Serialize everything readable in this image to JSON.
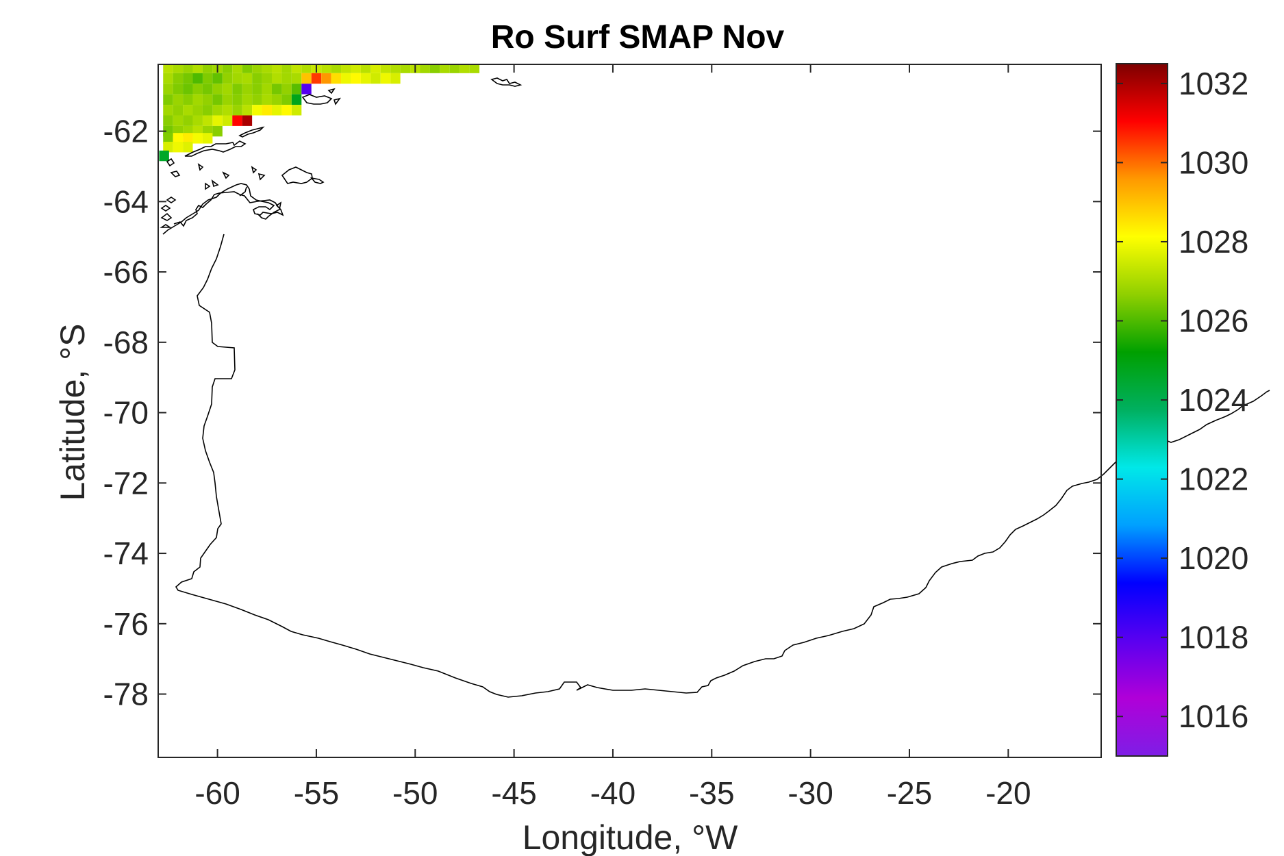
{
  "chart_data": {
    "type": "heatmap",
    "title": "Ro Surf SMAP Nov",
    "xlabel": "Longitude, °W",
    "ylabel": "Latitude, °S",
    "xlim": [
      -63,
      -15.3
    ],
    "ylim": [
      -79.8,
      -60.1
    ],
    "xticks": [
      -60,
      -55,
      -50,
      -45,
      -40,
      -35,
      -30,
      -25,
      -20
    ],
    "xtick_labels": [
      "-60",
      "-55",
      "-50",
      "-45",
      "-40",
      "-35",
      "-30",
      "-25",
      "-20"
    ],
    "yticks": [
      -62,
      -64,
      -66,
      -68,
      -70,
      -72,
      -74,
      -76,
      -78
    ],
    "ytick_labels": [
      "-62",
      "-64",
      "-66",
      "-68",
      "-70",
      "-72",
      "-74",
      "-76",
      "-78"
    ],
    "colorbar": {
      "clim": [
        1015,
        1032.5
      ],
      "ticks": [
        1016,
        1018,
        1020,
        1022,
        1024,
        1026,
        1028,
        1030,
        1032
      ],
      "tick_labels": [
        "1016",
        "1018",
        "1020",
        "1022",
        "1024",
        "1026",
        "1028",
        "1030",
        "1032"
      ],
      "colormap": "jet-like (violet → blue → cyan → green → yellow → red → dark red)"
    },
    "grid": false,
    "cell_size_deg": 0.5,
    "data_region": "Sparse coverage only in the top-left corner (about 62.5–47°W, 60–62.5°S); values mostly 1026–1028, a few near 1024–1025 at the left edge, a 1029–1031 patch near 55.5°W 60.6°S, a 1032 cell near 58.8°W 61.6°S and a 1018 cell near 55.5°W 60.9°S",
    "cells": [
      {
        "lon": -62.5,
        "lat": -60.2,
        "v": 1027.2
      },
      {
        "lon": -62.0,
        "lat": -60.2,
        "v": 1027.0
      },
      {
        "lon": -61.5,
        "lat": -60.2,
        "v": 1026.8
      },
      {
        "lon": -61.0,
        "lat": -60.2,
        "v": 1027.1
      },
      {
        "lon": -60.5,
        "lat": -60.2,
        "v": 1026.7
      },
      {
        "lon": -60.0,
        "lat": -60.2,
        "v": 1026.9
      },
      {
        "lon": -59.5,
        "lat": -60.2,
        "v": 1026.6
      },
      {
        "lon": -59.0,
        "lat": -60.2,
        "v": 1027.0
      },
      {
        "lon": -58.5,
        "lat": -60.2,
        "v": 1026.5
      },
      {
        "lon": -58.0,
        "lat": -60.2,
        "v": 1026.8
      },
      {
        "lon": -57.5,
        "lat": -60.2,
        "v": 1027.0
      },
      {
        "lon": -57.0,
        "lat": -60.2,
        "v": 1027.2
      },
      {
        "lon": -56.5,
        "lat": -60.2,
        "v": 1026.9
      },
      {
        "lon": -56.0,
        "lat": -60.2,
        "v": 1027.3
      },
      {
        "lon": -55.5,
        "lat": -60.2,
        "v": 1027.1
      },
      {
        "lon": -55.0,
        "lat": -60.2,
        "v": 1027.4
      },
      {
        "lon": -54.5,
        "lat": -60.2,
        "v": 1027.2
      },
      {
        "lon": -54.0,
        "lat": -60.2,
        "v": 1027.0
      },
      {
        "lon": -53.5,
        "lat": -60.2,
        "v": 1027.3
      },
      {
        "lon": -53.0,
        "lat": -60.2,
        "v": 1027.5
      },
      {
        "lon": -52.5,
        "lat": -60.2,
        "v": 1027.2
      },
      {
        "lon": -52.0,
        "lat": -60.2,
        "v": 1027.6
      },
      {
        "lon": -51.5,
        "lat": -60.2,
        "v": 1027.3
      },
      {
        "lon": -51.0,
        "lat": -60.2,
        "v": 1027.1
      },
      {
        "lon": -50.5,
        "lat": -60.2,
        "v": 1027.0
      },
      {
        "lon": -50.0,
        "lat": -60.2,
        "v": 1027.2
      },
      {
        "lon": -49.5,
        "lat": -60.2,
        "v": 1026.9
      },
      {
        "lon": -49.0,
        "lat": -60.2,
        "v": 1026.6
      },
      {
        "lon": -48.5,
        "lat": -60.2,
        "v": 1027.0
      },
      {
        "lon": -48.0,
        "lat": -60.2,
        "v": 1026.8
      },
      {
        "lon": -47.5,
        "lat": -60.2,
        "v": 1027.1
      },
      {
        "lon": -47.0,
        "lat": -60.2,
        "v": 1027.0
      },
      {
        "lon": -62.5,
        "lat": -60.5,
        "v": 1027.0
      },
      {
        "lon": -62.0,
        "lat": -60.5,
        "v": 1026.6
      },
      {
        "lon": -61.5,
        "lat": -60.5,
        "v": 1026.4
      },
      {
        "lon": -61.0,
        "lat": -60.5,
        "v": 1026.0
      },
      {
        "lon": -60.5,
        "lat": -60.5,
        "v": 1026.5
      },
      {
        "lon": -60.0,
        "lat": -60.5,
        "v": 1026.2
      },
      {
        "lon": -59.5,
        "lat": -60.5,
        "v": 1026.7
      },
      {
        "lon": -59.0,
        "lat": -60.5,
        "v": 1026.9
      },
      {
        "lon": -58.5,
        "lat": -60.5,
        "v": 1027.0
      },
      {
        "lon": -58.0,
        "lat": -60.5,
        "v": 1026.6
      },
      {
        "lon": -57.5,
        "lat": -60.5,
        "v": 1026.8
      },
      {
        "lon": -57.0,
        "lat": -60.5,
        "v": 1027.1
      },
      {
        "lon": -56.5,
        "lat": -60.5,
        "v": 1026.9
      },
      {
        "lon": -56.0,
        "lat": -60.5,
        "v": 1027.0
      },
      {
        "lon": -55.5,
        "lat": -60.5,
        "v": 1029.0
      },
      {
        "lon": -55.0,
        "lat": -60.5,
        "v": 1030.5
      },
      {
        "lon": -54.5,
        "lat": -60.5,
        "v": 1029.6
      },
      {
        "lon": -54.0,
        "lat": -60.5,
        "v": 1028.6
      },
      {
        "lon": -53.5,
        "lat": -60.5,
        "v": 1027.9
      },
      {
        "lon": -53.0,
        "lat": -60.5,
        "v": 1028.2
      },
      {
        "lon": -52.5,
        "lat": -60.5,
        "v": 1027.8
      },
      {
        "lon": -52.0,
        "lat": -60.5,
        "v": 1027.5
      },
      {
        "lon": -51.5,
        "lat": -60.5,
        "v": 1027.9
      },
      {
        "lon": -51.0,
        "lat": -60.5,
        "v": 1027.6
      },
      {
        "lon": -62.5,
        "lat": -60.8,
        "v": 1026.8
      },
      {
        "lon": -62.0,
        "lat": -60.8,
        "v": 1026.5
      },
      {
        "lon": -61.5,
        "lat": -60.8,
        "v": 1026.3
      },
      {
        "lon": -61.0,
        "lat": -60.8,
        "v": 1026.6
      },
      {
        "lon": -60.5,
        "lat": -60.8,
        "v": 1026.4
      },
      {
        "lon": -60.0,
        "lat": -60.8,
        "v": 1026.7
      },
      {
        "lon": -59.5,
        "lat": -60.8,
        "v": 1026.9
      },
      {
        "lon": -59.0,
        "lat": -60.8,
        "v": 1026.5
      },
      {
        "lon": -58.5,
        "lat": -60.8,
        "v": 1026.8
      },
      {
        "lon": -58.0,
        "lat": -60.8,
        "v": 1026.6
      },
      {
        "lon": -57.5,
        "lat": -60.8,
        "v": 1026.9
      },
      {
        "lon": -57.0,
        "lat": -60.8,
        "v": 1026.4
      },
      {
        "lon": -56.5,
        "lat": -60.8,
        "v": 1026.7
      },
      {
        "lon": -56.0,
        "lat": -60.8,
        "v": 1026.1
      },
      {
        "lon": -55.5,
        "lat": -60.8,
        "v": 1018.0
      },
      {
        "lon": -62.5,
        "lat": -61.1,
        "v": 1026.5
      },
      {
        "lon": -62.0,
        "lat": -61.1,
        "v": 1026.8
      },
      {
        "lon": -61.5,
        "lat": -61.1,
        "v": 1026.6
      },
      {
        "lon": -61.0,
        "lat": -61.1,
        "v": 1026.9
      },
      {
        "lon": -60.5,
        "lat": -61.1,
        "v": 1026.7
      },
      {
        "lon": -60.0,
        "lat": -61.1,
        "v": 1026.4
      },
      {
        "lon": -59.5,
        "lat": -61.1,
        "v": 1026.8
      },
      {
        "lon": -59.0,
        "lat": -61.1,
        "v": 1026.6
      },
      {
        "lon": -58.5,
        "lat": -61.1,
        "v": 1026.9
      },
      {
        "lon": -58.0,
        "lat": -61.1,
        "v": 1026.7
      },
      {
        "lon": -57.5,
        "lat": -61.1,
        "v": 1027.0
      },
      {
        "lon": -57.0,
        "lat": -61.1,
        "v": 1026.8
      },
      {
        "lon": -56.5,
        "lat": -61.1,
        "v": 1026.5
      },
      {
        "lon": -56.0,
        "lat": -61.1,
        "v": 1024.8
      },
      {
        "lon": -62.5,
        "lat": -61.4,
        "v": 1026.9
      },
      {
        "lon": -62.0,
        "lat": -61.4,
        "v": 1026.7
      },
      {
        "lon": -61.5,
        "lat": -61.4,
        "v": 1027.0
      },
      {
        "lon": -61.0,
        "lat": -61.4,
        "v": 1026.8
      },
      {
        "lon": -60.5,
        "lat": -61.4,
        "v": 1026.6
      },
      {
        "lon": -60.0,
        "lat": -61.4,
        "v": 1026.9
      },
      {
        "lon": -59.5,
        "lat": -61.4,
        "v": 1027.1
      },
      {
        "lon": -59.0,
        "lat": -61.4,
        "v": 1026.8
      },
      {
        "lon": -58.5,
        "lat": -61.4,
        "v": 1027.2
      },
      {
        "lon": -58.0,
        "lat": -61.4,
        "v": 1028.0
      },
      {
        "lon": -57.5,
        "lat": -61.4,
        "v": 1028.4
      },
      {
        "lon": -57.0,
        "lat": -61.4,
        "v": 1027.8
      },
      {
        "lon": -56.5,
        "lat": -61.4,
        "v": 1028.2
      },
      {
        "lon": -56.0,
        "lat": -61.4,
        "v": 1027.5
      },
      {
        "lon": -62.5,
        "lat": -61.7,
        "v": 1026.6
      },
      {
        "lon": -62.0,
        "lat": -61.7,
        "v": 1026.9
      },
      {
        "lon": -61.5,
        "lat": -61.7,
        "v": 1026.7
      },
      {
        "lon": -61.0,
        "lat": -61.7,
        "v": 1027.0
      },
      {
        "lon": -60.5,
        "lat": -61.7,
        "v": 1027.3
      },
      {
        "lon": -60.0,
        "lat": -61.7,
        "v": 1027.8
      },
      {
        "lon": -59.5,
        "lat": -61.7,
        "v": 1027.5
      },
      {
        "lon": -59.0,
        "lat": -61.7,
        "v": 1031.0
      },
      {
        "lon": -58.5,
        "lat": -61.7,
        "v": 1032.0
      },
      {
        "lon": -62.5,
        "lat": -62.0,
        "v": 1026.4
      },
      {
        "lon": -62.0,
        "lat": -62.0,
        "v": 1026.7
      },
      {
        "lon": -61.5,
        "lat": -62.0,
        "v": 1026.9
      },
      {
        "lon": -61.0,
        "lat": -62.0,
        "v": 1027.2
      },
      {
        "lon": -60.5,
        "lat": -62.0,
        "v": 1026.8
      },
      {
        "lon": -60.0,
        "lat": -62.0,
        "v": 1026.6
      },
      {
        "lon": -62.5,
        "lat": -62.2,
        "v": 1026.5
      },
      {
        "lon": -62.0,
        "lat": -62.2,
        "v": 1028.2
      },
      {
        "lon": -61.5,
        "lat": -62.2,
        "v": 1028.4
      },
      {
        "lon": -61.0,
        "lat": -62.2,
        "v": 1028.0
      },
      {
        "lon": -60.5,
        "lat": -62.2,
        "v": 1027.8
      },
      {
        "lon": -62.5,
        "lat": -62.45,
        "v": 1027.6
      },
      {
        "lon": -62.0,
        "lat": -62.45,
        "v": 1027.9
      },
      {
        "lon": -61.5,
        "lat": -62.45,
        "v": 1027.7
      },
      {
        "lon": -62.7,
        "lat": -62.7,
        "v": 1024.6
      }
    ]
  },
  "colors": {
    "colormap_stops": [
      "#7e1ee6",
      "#b000d8",
      "#5a00f0",
      "#0000ff",
      "#00a0ff",
      "#00e8e8",
      "#00b060",
      "#00a000",
      "#90d000",
      "#ffff00",
      "#ff9900",
      "#ff0000",
      "#7d0000"
    ],
    "coastline": "#000000",
    "axes": "#262626"
  }
}
